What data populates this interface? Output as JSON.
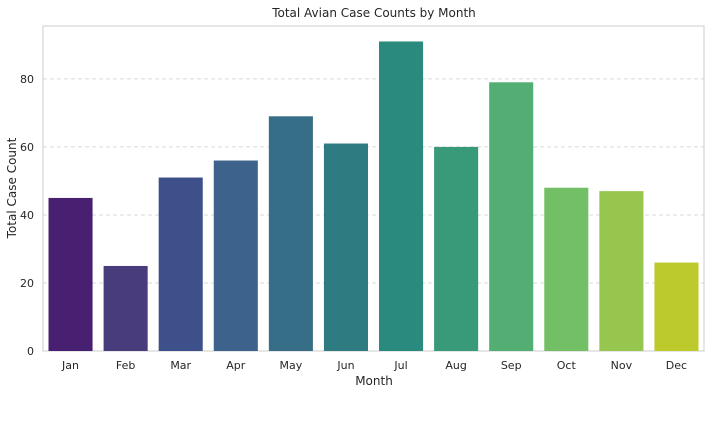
{
  "chart_data": {
    "type": "bar",
    "title": "Total Avian Case Counts by Month",
    "xlabel": "Month",
    "ylabel": "Total Case Count",
    "categories": [
      "Jan",
      "Feb",
      "Mar",
      "Apr",
      "May",
      "Jun",
      "Jul",
      "Aug",
      "Sep",
      "Oct",
      "Nov",
      "Dec"
    ],
    "values": [
      45,
      25,
      51,
      56,
      69,
      61,
      91,
      60,
      79,
      48,
      47,
      26
    ],
    "ylim": [
      0,
      95.55
    ],
    "yticks": [
      0,
      20,
      40,
      60,
      80
    ],
    "grid": "y-dashed",
    "legend": "none",
    "colors": [
      "#482072",
      "#483c7c",
      "#3e508a",
      "#3d628c",
      "#356e86",
      "#2e7c82",
      "#2a8a7e",
      "#389a78",
      "#52ae73",
      "#73bf66",
      "#96c64d",
      "#bdca2c"
    ]
  }
}
